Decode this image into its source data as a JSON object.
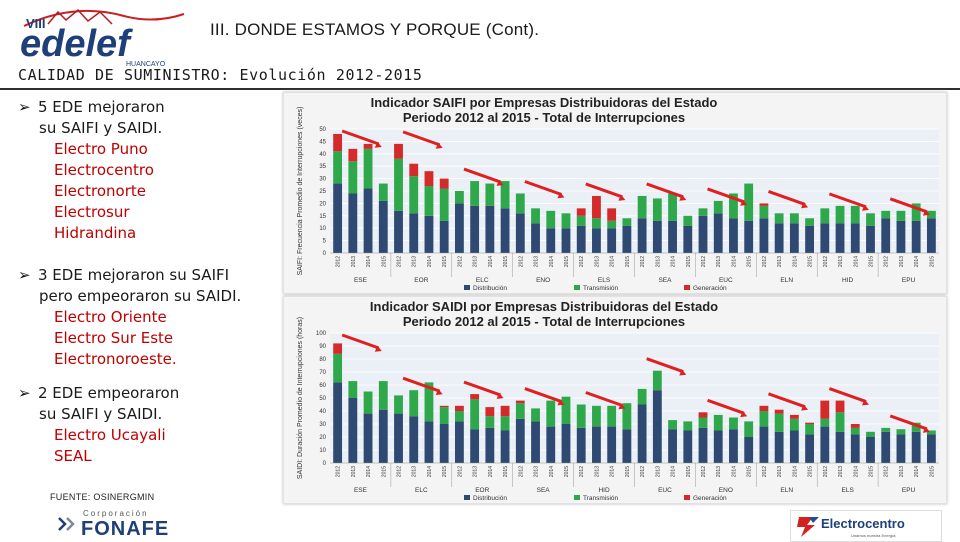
{
  "slide": {
    "title": "III.  DONDE ESTAMOS Y PORQUE (Cont).",
    "subtitle": "CALIDAD DE SUMINISTRO: Evolución 2012-2015",
    "source": "FUENTE: OSINERGMIN"
  },
  "logos": {
    "edelef": {
      "roman": "VIII",
      "name": "edelef",
      "city": "HUANCAYO"
    },
    "fonafe": {
      "top": "Corporación",
      "name": "FONAFE"
    },
    "electrocentro": {
      "name": "Electrocentro",
      "tagline": "Unamos nuestra Energía"
    }
  },
  "bullets": [
    {
      "lines": [
        "5 EDE mejoraron",
        "su SAIFI y SAIDI."
      ],
      "companies": [
        "Electro Puno",
        "Electrocentro",
        "Electronorte",
        "Electrosur",
        "Hidrandina"
      ]
    },
    {
      "lines": [
        "3 EDE mejoraron su SAIFI",
        "pero empeoraron su SAIDI."
      ],
      "companies": [
        "Electro Oriente",
        "Electro Sur Este",
        "Electronoroeste."
      ]
    },
    {
      "lines": [
        "2 EDE empeoraron",
        "su SAIFI y SAIDI."
      ],
      "companies": [
        "Electro Ucayali",
        "SEAL"
      ]
    }
  ],
  "colors": {
    "distribucion": "#2e4a72",
    "transmision": "#2ea84a",
    "generacion": "#d42a2a",
    "arrow": "#e02020",
    "bullet_red": "#c00000"
  },
  "chart_data": [
    {
      "type": "bar",
      "stacked": true,
      "title": "Indicador SAIFI por Empresas Distribuidoras del Estado",
      "subtitle": "Periodo 2012 al 2015 - Total de Interrupciones",
      "ylabel": "SAIFI: Frecuencia Promedio de Interrupciones (veces)",
      "ylim": [
        0,
        50
      ],
      "yticks": [
        0,
        5,
        10,
        15,
        20,
        25,
        30,
        35,
        40,
        45,
        50
      ],
      "years": [
        "2012",
        "2013",
        "2014",
        "2015"
      ],
      "groups": [
        "ESE",
        "EOR",
        "ELC",
        "ENO",
        "ELS",
        "SEA",
        "EUC",
        "ELN",
        "HID",
        "EPU"
      ],
      "improved_groups": [
        "ESE",
        "EOR",
        "ELC",
        "ENO",
        "ELS",
        "SEA",
        "EUC",
        "ELN",
        "HID",
        "EPU"
      ],
      "legend": [
        "Distribución",
        "Transmisión",
        "Generación"
      ],
      "series": [
        {
          "name": "Distribución",
          "values": [
            28,
            24,
            26,
            21,
            17,
            16,
            15,
            13,
            20,
            19,
            19,
            18,
            16,
            12,
            10,
            10,
            11,
            10,
            10,
            11,
            14,
            13,
            13,
            11,
            15,
            16,
            14,
            13,
            14,
            12,
            12,
            11,
            12,
            12,
            12,
            11,
            14,
            13,
            13,
            14
          ]
        },
        {
          "name": "Transmisión",
          "values": [
            13,
            13,
            16,
            7,
            21,
            15,
            12,
            13,
            5,
            10,
            9,
            11,
            8,
            6,
            7,
            6,
            4,
            4,
            3,
            3,
            9,
            9,
            11,
            4,
            3,
            5,
            10,
            15,
            5,
            4,
            4,
            3,
            6,
            7,
            7,
            5,
            3,
            4,
            7,
            3
          ]
        },
        {
          "name": "Generación",
          "values": [
            7,
            5,
            2,
            0,
            6,
            5,
            6,
            4,
            0,
            0,
            0,
            0,
            0,
            0,
            0,
            0,
            3,
            9,
            5,
            0,
            0,
            0,
            0,
            0,
            0,
            0,
            0,
            0,
            1,
            0,
            0,
            0,
            0,
            0,
            0,
            0,
            0,
            0,
            0,
            0
          ]
        }
      ]
    },
    {
      "type": "bar",
      "stacked": true,
      "title": "Indicador SAIDI por Empresas Distribuidoras del Estado",
      "subtitle": "Periodo 2012 al 2015 - Total de Interrupciones",
      "ylabel": "SAIDI: Duración Promedio de Interrupciones (horas)",
      "ylim": [
        0,
        100
      ],
      "yticks": [
        0,
        10,
        20,
        30,
        40,
        50,
        60,
        70,
        80,
        90,
        100
      ],
      "years": [
        "2012",
        "2013",
        "2014",
        "2015"
      ],
      "groups": [
        "ESE",
        "ELC",
        "EOR",
        "SEA",
        "HID",
        "EUC",
        "ENO",
        "ELN",
        "ELS",
        "EPU"
      ],
      "improved_groups": [
        "ESE",
        "ELC",
        "EOR",
        "SEA",
        "HID",
        "EUC",
        "ENO",
        "ELN",
        "ELS",
        "EPU"
      ],
      "legend": [
        "Distribución",
        "Transmisión",
        "Generación"
      ],
      "series": [
        {
          "name": "Distribución",
          "values": [
            62,
            50,
            38,
            41,
            38,
            36,
            32,
            30,
            32,
            26,
            27,
            25,
            34,
            32,
            28,
            30,
            27,
            28,
            28,
            26,
            45,
            56,
            26,
            25,
            27,
            25,
            26,
            20,
            28,
            24,
            25,
            22,
            28,
            24,
            22,
            20,
            24,
            22,
            24,
            22
          ]
        },
        {
          "name": "Transmisión",
          "values": [
            22,
            13,
            17,
            22,
            14,
            20,
            30,
            13,
            8,
            23,
            9,
            11,
            12,
            10,
            20,
            21,
            18,
            16,
            16,
            20,
            12,
            15,
            7,
            7,
            8,
            12,
            9,
            12,
            12,
            14,
            9,
            8,
            6,
            15,
            5,
            4,
            3,
            4,
            7,
            3
          ]
        },
        {
          "name": "Generación",
          "values": [
            8,
            0,
            0,
            0,
            0,
            0,
            0,
            1,
            4,
            4,
            7,
            8,
            2,
            0,
            0,
            0,
            0,
            0,
            0,
            0,
            0,
            0,
            0,
            0,
            4,
            0,
            0,
            0,
            4,
            3,
            3,
            1,
            14,
            9,
            3,
            0,
            0,
            0,
            0,
            0
          ]
        }
      ]
    }
  ]
}
